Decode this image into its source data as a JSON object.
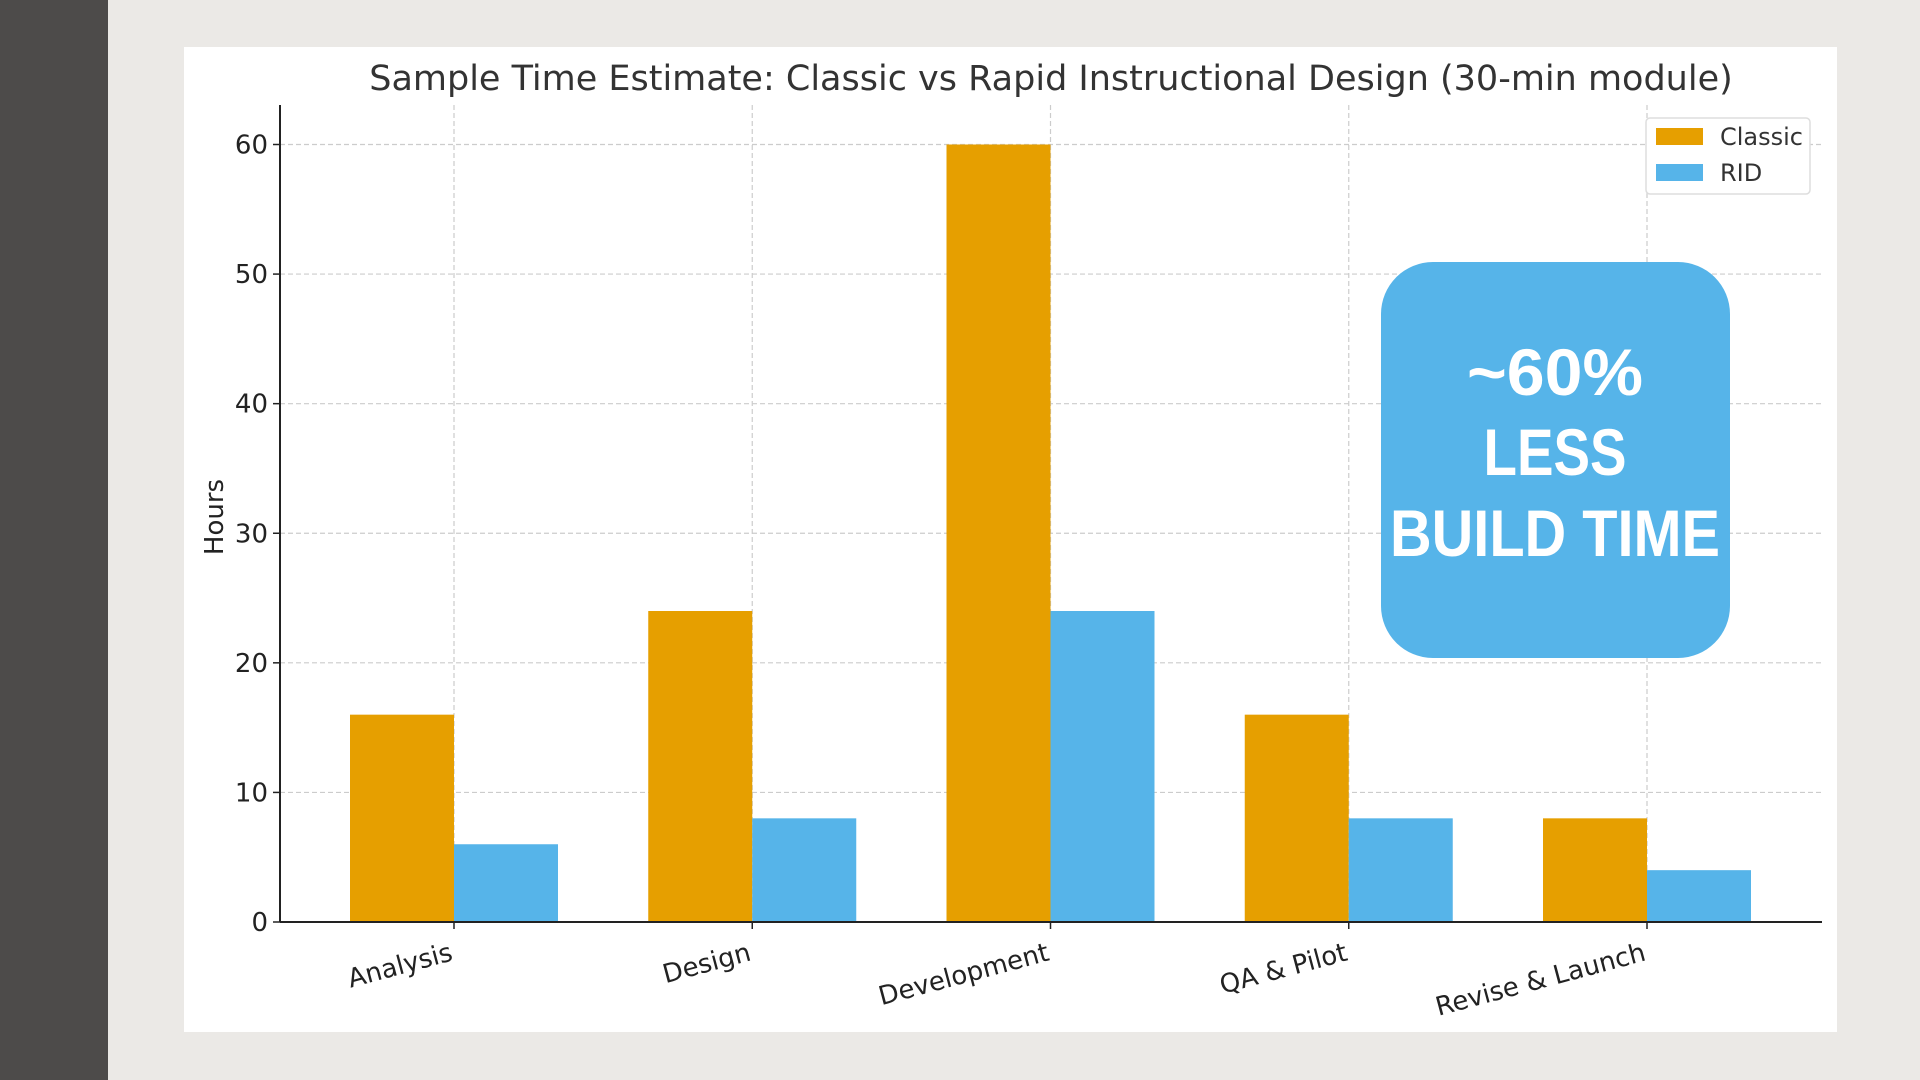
{
  "chart_data": {
    "type": "bar",
    "title": "Sample Time Estimate: Classic vs Rapid Instructional Design (30-min module)",
    "xlabel": "",
    "ylabel": "Hours",
    "categories": [
      "Analysis",
      "Design",
      "Development",
      "QA & Pilot",
      "Revise & Launch"
    ],
    "series": [
      {
        "name": "Classic",
        "values": [
          16,
          24,
          60,
          16,
          8
        ],
        "color": "#e69f00"
      },
      {
        "name": "RID",
        "values": [
          6,
          8,
          24,
          8,
          4
        ],
        "color": "#56b4e9"
      }
    ],
    "ylim": [
      0,
      63
    ],
    "yticks": [
      0,
      10,
      20,
      30,
      40,
      50,
      60
    ],
    "grid": true,
    "legend": "top-right",
    "annotation": {
      "lines": [
        "~60%",
        "LESS",
        "BUILD TIME"
      ],
      "color": "#56b4e9"
    }
  }
}
